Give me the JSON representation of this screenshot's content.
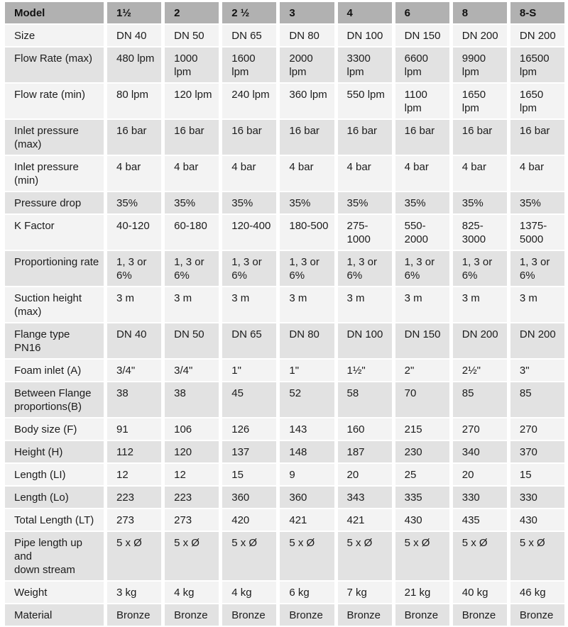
{
  "table": {
    "columns": [
      "Model",
      "1½",
      "2",
      "2 ½",
      "3",
      "4",
      "6",
      "8",
      "8-S"
    ],
    "rows": [
      {
        "label": "Size",
        "values": [
          "DN 40",
          "DN 50",
          "DN 65",
          "DN 80",
          "DN 100",
          "DN 150",
          "DN 200",
          "DN 200"
        ]
      },
      {
        "label": "Flow Rate (max)",
        "values": [
          "480 lpm",
          "1000 lpm",
          "1600 lpm",
          "2000 lpm",
          "3300 lpm",
          "6600 lpm",
          "9900 lpm",
          "16500 lpm"
        ]
      },
      {
        "label": "Flow rate (min)",
        "values": [
          "80 lpm",
          "120 lpm",
          "240 lpm",
          "360 lpm",
          "550 lpm",
          "1100 lpm",
          "1650 lpm",
          "1650 lpm"
        ]
      },
      {
        "label": "Inlet pressure (max)",
        "values": [
          "16 bar",
          "16 bar",
          "16 bar",
          "16 bar",
          "16 bar",
          "16 bar",
          "16 bar",
          "16 bar"
        ]
      },
      {
        "label": "Inlet pressure (min)",
        "values": [
          "4 bar",
          "4 bar",
          "4 bar",
          "4 bar",
          "4 bar",
          "4 bar",
          "4 bar",
          "4 bar"
        ]
      },
      {
        "label": "Pressure drop",
        "values": [
          "35%",
          "35%",
          "35%",
          "35%",
          "35%",
          "35%",
          "35%",
          "35%"
        ]
      },
      {
        "label": "K Factor",
        "values": [
          "40-120",
          "60-180",
          "120-400",
          "180-500",
          "275-1000",
          "550-2000",
          "825-3000",
          "1375-5000"
        ]
      },
      {
        "label": "Proportioning rate",
        "values": [
          "1, 3 or 6%",
          "1, 3 or 6%",
          "1, 3 or 6%",
          "1, 3 or 6%",
          "1, 3 or 6%",
          "1, 3 or 6%",
          "1, 3 or 6%",
          "1, 3 or 6%"
        ]
      },
      {
        "label": "Suction height (max)",
        "values": [
          "3 m",
          "3 m",
          "3 m",
          "3 m",
          "3 m",
          "3 m",
          "3 m",
          "3 m"
        ]
      },
      {
        "label": "Flange type\nPN16",
        "values": [
          "DN 40",
          "DN 50",
          "DN 65",
          "DN 80",
          "DN 100",
          "DN 150",
          "DN 200",
          "DN 200"
        ]
      },
      {
        "label": "Foam inlet (A)",
        "values": [
          "3/4\"",
          "3/4\"",
          "1\"",
          "1\"",
          "1½\"",
          "2\"",
          "2½\"",
          "3\""
        ]
      },
      {
        "label": "Between Flange\nproportions(B)",
        "values": [
          "38",
          "38",
          "45",
          "52",
          "58",
          "70",
          "85",
          "85"
        ]
      },
      {
        "label": "Body size (F)",
        "values": [
          "91",
          "106",
          "126",
          "143",
          "160",
          "215",
          "270",
          "270"
        ]
      },
      {
        "label": "Height (H)",
        "values": [
          "112",
          "120",
          "137",
          "148",
          "187",
          "230",
          "340",
          "370"
        ]
      },
      {
        "label": "Length (LI)",
        "values": [
          "12",
          "12",
          "15",
          "9",
          "20",
          "25",
          "20",
          "15"
        ]
      },
      {
        "label": "Length (Lo)",
        "values": [
          "223",
          "223",
          "360",
          "360",
          "343",
          "335",
          "330",
          "330"
        ]
      },
      {
        "label": "Total Length (LT)",
        "values": [
          "273",
          "273",
          "420",
          "421",
          "421",
          "430",
          "435",
          "430"
        ]
      },
      {
        "label": "Pipe length up and\ndown stream",
        "values": [
          "5 x Ø",
          "5 x Ø",
          "5 x Ø",
          "5 x Ø",
          "5 x Ø",
          "5 x Ø",
          "5 x Ø",
          "5 x Ø"
        ]
      },
      {
        "label": "Weight",
        "values": [
          "3 kg",
          "4 kg",
          "4 kg",
          "6 kg",
          "7 kg",
          "21 kg",
          "40 kg",
          "46 kg"
        ]
      },
      {
        "label": "Material",
        "values": [
          "Bronze",
          "Bronze",
          "Bronze",
          "Bronze",
          "Bronze",
          "Bronze",
          "Bronze",
          "Bronze"
        ]
      }
    ],
    "colors": {
      "header_bg": "#b1b1b1",
      "row_light_bg": "#f3f3f3",
      "row_shaded_bg": "#e2e2e2",
      "text": "#1c1c1c",
      "gap": "#ffffff"
    }
  }
}
